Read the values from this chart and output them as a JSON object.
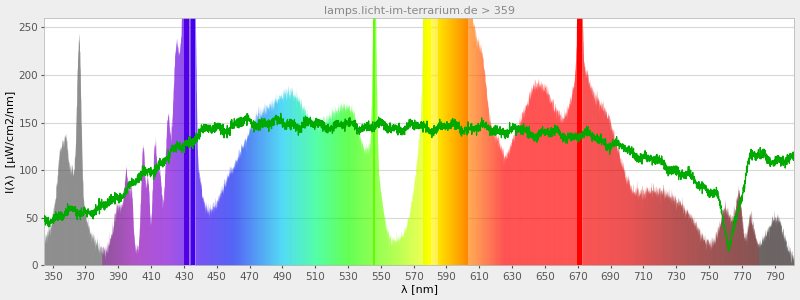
{
  "title": "lamps.licht-im-terrarium.de > 359",
  "xlabel": "λ [nm]",
  "ylabel": "I(λ)  [µW/cm2/nm]",
  "xlim": [
    345,
    802
  ],
  "ylim": [
    0,
    260
  ],
  "yticks": [
    0,
    50,
    100,
    150,
    200,
    250
  ],
  "xticks": [
    350,
    370,
    390,
    410,
    430,
    450,
    470,
    490,
    510,
    530,
    550,
    570,
    590,
    610,
    630,
    650,
    670,
    690,
    710,
    730,
    750,
    770,
    790
  ],
  "background_color": "#eeeeee",
  "plot_background": "#ffffff",
  "grid_color": "#d8d8d8",
  "title_color": "#888888",
  "title_fontsize": 8,
  "axis_label_fontsize": 8,
  "tick_fontsize": 7.5
}
